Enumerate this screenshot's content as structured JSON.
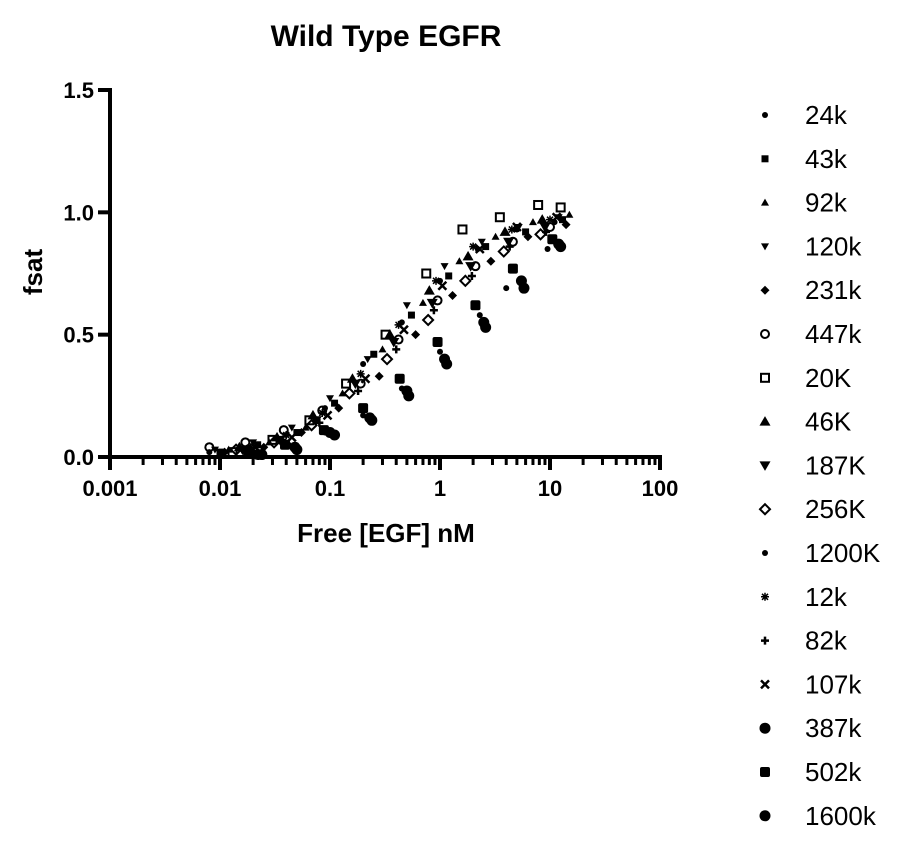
{
  "chart_data": {
    "type": "scatter",
    "title": "Wild Type EGFR",
    "xlabel": "Free [EGF] nM",
    "ylabel": "fsat",
    "x_scale": "log",
    "xlim": [
      0.001,
      100
    ],
    "ylim": [
      0,
      1.5
    ],
    "x_ticks": [
      0.001,
      0.01,
      0.1,
      1,
      10,
      100
    ],
    "x_tick_labels": [
      "0.001",
      "0.01",
      "0.1",
      "1",
      "10",
      "100"
    ],
    "y_ticks": [
      0,
      0.5,
      1.0,
      1.5
    ],
    "y_tick_labels": [
      "0.0",
      "0.5",
      "1.0",
      "1.5"
    ],
    "grid": false,
    "legend_position": "right",
    "series": [
      {
        "name": "24k",
        "marker": "dot",
        "x": [
          0.008,
          0.018,
          0.04,
          0.09,
          0.2,
          0.45,
          1.0,
          2.2,
          5.0,
          11.0
        ],
        "y": [
          0.02,
          0.04,
          0.09,
          0.2,
          0.38,
          0.55,
          0.72,
          0.85,
          0.93,
          0.96
        ]
      },
      {
        "name": "43k",
        "marker": "square",
        "x": [
          0.01,
          0.022,
          0.05,
          0.11,
          0.25,
          0.55,
          1.2,
          2.6,
          6.0,
          13.0
        ],
        "y": [
          0.02,
          0.05,
          0.1,
          0.22,
          0.42,
          0.58,
          0.74,
          0.86,
          0.92,
          0.97
        ]
      },
      {
        "name": "92k",
        "marker": "triangle-up",
        "x": [
          0.012,
          0.028,
          0.06,
          0.13,
          0.3,
          0.7,
          1.5,
          3.2,
          7.0,
          15.0
        ],
        "y": [
          0.03,
          0.06,
          0.12,
          0.26,
          0.44,
          0.63,
          0.8,
          0.9,
          0.96,
          0.99
        ]
      },
      {
        "name": "120k",
        "marker": "triangle-down",
        "x": [
          0.009,
          0.02,
          0.045,
          0.1,
          0.22,
          0.5,
          1.1,
          2.4,
          5.2,
          12.0
        ],
        "y": [
          0.03,
          0.06,
          0.12,
          0.24,
          0.4,
          0.62,
          0.78,
          0.88,
          0.94,
          0.98
        ]
      },
      {
        "name": "231k",
        "marker": "diamond",
        "x": [
          0.011,
          0.025,
          0.055,
          0.12,
          0.28,
          0.6,
          1.3,
          2.9,
          6.3,
          14.0
        ],
        "y": [
          0.02,
          0.04,
          0.1,
          0.2,
          0.33,
          0.5,
          0.66,
          0.8,
          0.9,
          0.95
        ]
      },
      {
        "name": "447k",
        "marker": "circle-open",
        "x": [
          0.008,
          0.017,
          0.038,
          0.085,
          0.19,
          0.42,
          0.95,
          2.1,
          4.6,
          10.0
        ],
        "y": [
          0.04,
          0.06,
          0.11,
          0.19,
          0.3,
          0.48,
          0.64,
          0.78,
          0.88,
          0.94
        ]
      },
      {
        "name": "20K",
        "marker": "square-open",
        "x": [
          0.013,
          0.03,
          0.065,
          0.14,
          0.32,
          0.75,
          1.6,
          3.5,
          7.8,
          12.5
        ],
        "y": [
          0.02,
          0.07,
          0.15,
          0.3,
          0.5,
          0.75,
          0.93,
          0.98,
          1.03,
          1.02
        ]
      },
      {
        "name": "46K",
        "marker": "triangle-up-filled",
        "x": [
          0.015,
          0.033,
          0.07,
          0.16,
          0.35,
          0.8,
          1.8,
          3.9,
          8.5
        ],
        "y": [
          0.04,
          0.08,
          0.17,
          0.32,
          0.5,
          0.68,
          0.82,
          0.92,
          0.97
        ]
      },
      {
        "name": "187K",
        "marker": "triangle-down-filled",
        "x": [
          0.016,
          0.035,
          0.075,
          0.17,
          0.38,
          0.85,
          1.9,
          4.2,
          9.0
        ],
        "y": [
          0.03,
          0.07,
          0.15,
          0.3,
          0.47,
          0.63,
          0.78,
          0.88,
          0.94
        ]
      },
      {
        "name": "256K",
        "marker": "diamond-open",
        "x": [
          0.014,
          0.031,
          0.068,
          0.15,
          0.33,
          0.78,
          1.7,
          3.8,
          8.2
        ],
        "y": [
          0.03,
          0.06,
          0.13,
          0.26,
          0.4,
          0.56,
          0.72,
          0.84,
          0.91
        ]
      },
      {
        "name": "1200K",
        "marker": "dot",
        "x": [
          0.02,
          0.042,
          0.09,
          0.2,
          0.45,
          1.0,
          2.3,
          4.0,
          9.5
        ],
        "y": [
          0.02,
          0.05,
          0.1,
          0.17,
          0.28,
          0.43,
          0.58,
          0.69,
          0.85
        ]
      },
      {
        "name": "12k",
        "marker": "star",
        "x": [
          0.019,
          0.04,
          0.085,
          0.19,
          0.42,
          0.92,
          2.0,
          4.5,
          10.0
        ],
        "y": [
          0.04,
          0.09,
          0.18,
          0.34,
          0.54,
          0.72,
          0.86,
          0.93,
          0.97
        ]
      },
      {
        "name": "82k",
        "marker": "plus",
        "x": [
          0.017,
          0.037,
          0.08,
          0.18,
          0.4,
          0.88,
          1.95,
          4.3,
          9.2
        ],
        "y": [
          0.03,
          0.07,
          0.14,
          0.27,
          0.44,
          0.6,
          0.74,
          0.86,
          0.92
        ]
      },
      {
        "name": "107k",
        "marker": "cross",
        "x": [
          0.021,
          0.045,
          0.095,
          0.21,
          0.47,
          1.05,
          2.3,
          5.0,
          11.5
        ],
        "y": [
          0.04,
          0.08,
          0.17,
          0.32,
          0.52,
          0.7,
          0.85,
          0.94,
          0.98
        ]
      },
      {
        "name": "387k",
        "marker": "circle-filled",
        "x": [
          0.022,
          0.048,
          0.1,
          0.23,
          0.5,
          1.1,
          2.5,
          5.5,
          12.0
        ],
        "y": [
          0.01,
          0.04,
          0.1,
          0.16,
          0.27,
          0.4,
          0.55,
          0.72,
          0.87
        ]
      },
      {
        "name": "502k",
        "marker": "square-filled",
        "x": [
          0.018,
          0.039,
          0.088,
          0.2,
          0.43,
          0.95,
          2.1,
          4.6,
          10.5
        ],
        "y": [
          0.02,
          0.05,
          0.11,
          0.2,
          0.32,
          0.47,
          0.62,
          0.77,
          0.89
        ]
      },
      {
        "name": "1600k",
        "marker": "circle-filled",
        "x": [
          0.024,
          0.05,
          0.11,
          0.24,
          0.52,
          1.15,
          2.6,
          5.8,
          12.5
        ],
        "y": [
          0.01,
          0.03,
          0.09,
          0.15,
          0.25,
          0.38,
          0.53,
          0.69,
          0.86
        ]
      }
    ]
  }
}
